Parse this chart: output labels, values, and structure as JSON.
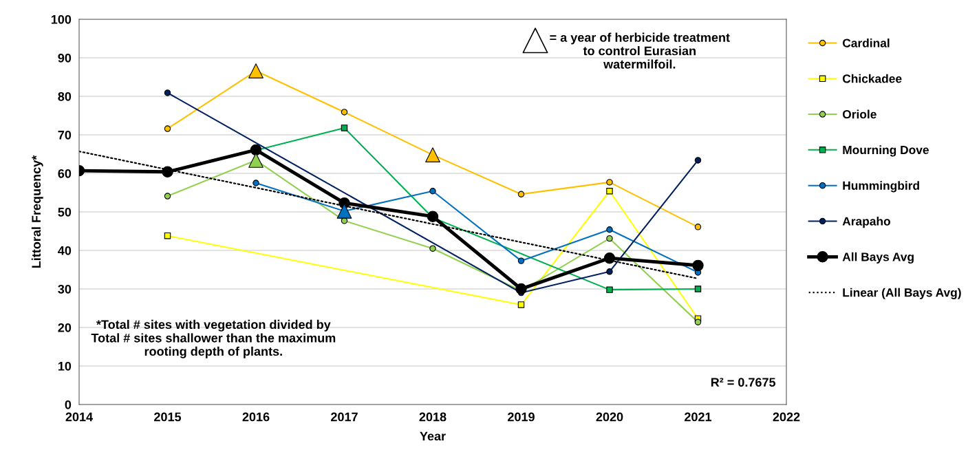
{
  "chart_data": {
    "type": "line",
    "xlabel": "Year",
    "ylabel": "Littoral Frequency*",
    "xlim": [
      2014,
      2022
    ],
    "xticks": [
      2014,
      2015,
      2016,
      2017,
      2018,
      2019,
      2020,
      2021,
      2022
    ],
    "ylim": [
      0,
      100
    ],
    "yticks": [
      0,
      10,
      20,
      30,
      40,
      50,
      60,
      70,
      80,
      90,
      100
    ],
    "grid": "y",
    "legend": "right",
    "marker": "circle",
    "line_style": "solid",
    "series": [
      {
        "name": "Cardinal",
        "color": "#ffc000",
        "x": [
          2015,
          2016,
          2017,
          2018,
          2019,
          2020,
          2021
        ],
        "values": [
          71.6,
          86.6,
          75.9,
          64.8,
          54.6,
          57.7,
          46.1
        ]
      },
      {
        "name": "Chickadee",
        "color": "#ffff00",
        "marker": "square",
        "x": [
          2015,
          2019,
          2020,
          2021
        ],
        "values": [
          43.8,
          25.9,
          55.4,
          22.3
        ]
      },
      {
        "name": "Oriole",
        "color": "#92d050",
        "x": [
          2015,
          2016,
          2017,
          2018,
          2019,
          2020,
          2021
        ],
        "values": [
          54.1,
          63.4,
          47.7,
          40.5,
          29.5,
          43.1,
          21.4
        ]
      },
      {
        "name": "Mourning Dove",
        "color": "#00b050",
        "marker": "square",
        "x": [
          2016,
          2017,
          2018,
          2020,
          2021
        ],
        "values": [
          66,
          71.8,
          48.5,
          29.8,
          30.0
        ]
      },
      {
        "name": "Hummingbird",
        "color": "#0070c0",
        "x": [
          2016,
          2017,
          2018,
          2019,
          2020,
          2021
        ],
        "values": [
          57.5,
          50.2,
          55.4,
          37.3,
          45.4,
          34.3
        ]
      },
      {
        "name": "Arapaho",
        "color": "#002060",
        "x": [
          2015,
          2019,
          2020,
          2021
        ],
        "values": [
          80.9,
          29,
          34.5,
          63.4
        ]
      },
      {
        "name": "All Bays Avg",
        "color": "#000000",
        "x": [
          2014,
          2015,
          2016,
          2017,
          2018,
          2019,
          2020,
          2021
        ],
        "values": [
          60.7,
          60.4,
          66.1,
          52.3,
          48.8,
          30.0,
          38.0,
          36.1
        ]
      },
      {
        "name": "Linear (All Bays Avg)",
        "color": "#000000",
        "line_style": "dotted",
        "marker": "none",
        "x": [
          2014,
          2021
        ],
        "values": [
          65.7,
          32.7
        ]
      },
      {
        "type": "scatter",
        "marker": "triangle",
        "x": [
          2016,
          2018,
          2016,
          2017
        ],
        "values": [
          86.6,
          64.8,
          63.4,
          50.2
        ],
        "colors": [
          "#ffc000",
          "#ffc000",
          "#92d050",
          "#0070c0"
        ]
      }
    ],
    "annotations": [
      "= a year of herbicide treatment\nto control Eurasian\nwatermilfoil.",
      "*Total # sites with vegetation divided by\nTotal # sites shallower than the maximum\nrooting depth of plants.",
      "R² = 0.7675"
    ]
  }
}
